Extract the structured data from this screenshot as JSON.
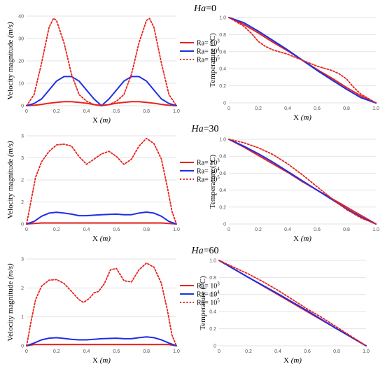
{
  "series_styles": {
    "Ra= 10^3": {
      "color": "#e8231c",
      "dash": "solid"
    },
    "Ra= 10^4": {
      "color": "#1f2ee6",
      "dash": "solid"
    },
    "Ra= 10^5": {
      "color": "#e8231c",
      "dash": "dotted"
    }
  },
  "chart_data": [
    {
      "id": "vel-ha0",
      "type": "line",
      "panel_label": "Ha=0",
      "xlabel": "X (m)",
      "ylabel": "Velocity magnitude (m/s)",
      "xlim": [
        0,
        1
      ],
      "ylim": [
        0,
        40
      ],
      "xticks": [
        "0",
        "0.2",
        "0.4",
        "0.6",
        "0.8",
        "1.0"
      ],
      "yticks": [
        "0",
        "10",
        "20",
        "30",
        "40"
      ],
      "legend": "right",
      "series": [
        {
          "name": "Ra= 10^3",
          "x": [
            0,
            0.05,
            0.1,
            0.15,
            0.2,
            0.25,
            0.3,
            0.35,
            0.4,
            0.45,
            0.5,
            0.55,
            0.6,
            0.65,
            0.7,
            0.75,
            0.8,
            0.85,
            0.9,
            0.95,
            1.0
          ],
          "y": [
            0,
            0.2,
            0.6,
            1.1,
            1.5,
            1.8,
            1.8,
            1.5,
            1.1,
            0.5,
            0,
            0.5,
            1.1,
            1.5,
            1.8,
            1.8,
            1.5,
            1.1,
            0.6,
            0.2,
            0
          ]
        },
        {
          "name": "Ra= 10^4",
          "x": [
            0,
            0.05,
            0.1,
            0.15,
            0.2,
            0.25,
            0.3,
            0.35,
            0.4,
            0.45,
            0.5,
            0.55,
            0.6,
            0.65,
            0.7,
            0.75,
            0.8,
            0.85,
            0.9,
            0.95,
            1.0
          ],
          "y": [
            0,
            1,
            3,
            7,
            11,
            13,
            13,
            11,
            7,
            3,
            0,
            3,
            7,
            11,
            13,
            13,
            11,
            7,
            3,
            1,
            0
          ]
        },
        {
          "name": "Ra= 10^5",
          "x": [
            0,
            0.05,
            0.1,
            0.15,
            0.18,
            0.2,
            0.25,
            0.3,
            0.35,
            0.4,
            0.45,
            0.5,
            0.55,
            0.6,
            0.65,
            0.7,
            0.75,
            0.8,
            0.82,
            0.85,
            0.9,
            0.95,
            1.0
          ],
          "y": [
            0,
            5,
            19,
            35,
            39,
            38,
            28,
            14,
            5,
            2,
            0.5,
            0.2,
            0.5,
            2,
            5,
            14,
            28,
            38,
            39,
            35,
            19,
            5,
            0
          ]
        }
      ]
    },
    {
      "id": "temp-ha0",
      "type": "line",
      "xlabel": "X (m)",
      "ylabel": "Temperature (°C)",
      "xlim": [
        0,
        1
      ],
      "ylim": [
        0,
        1
      ],
      "xticks": [
        "0",
        "0.2",
        "0.4",
        "0.6",
        "0.8",
        "1.0"
      ],
      "yticks": [
        "0",
        "0.2",
        "0.4",
        "0.6",
        "0.8",
        "1.0"
      ],
      "series": [
        {
          "name": "Ra= 10^3",
          "x": [
            0,
            0.1,
            0.2,
            0.3,
            0.4,
            0.5,
            0.6,
            0.7,
            0.8,
            0.9,
            1.0
          ],
          "y": [
            1,
            0.92,
            0.82,
            0.71,
            0.61,
            0.5,
            0.39,
            0.29,
            0.18,
            0.08,
            0
          ]
        },
        {
          "name": "Ra= 10^4",
          "x": [
            0,
            0.1,
            0.2,
            0.3,
            0.4,
            0.5,
            0.6,
            0.7,
            0.8,
            0.9,
            1.0
          ],
          "y": [
            1,
            0.94,
            0.84,
            0.73,
            0.62,
            0.5,
            0.38,
            0.27,
            0.16,
            0.06,
            0
          ]
        },
        {
          "name": "Ra= 10^5",
          "x": [
            0,
            0.1,
            0.15,
            0.2,
            0.25,
            0.3,
            0.4,
            0.5,
            0.6,
            0.7,
            0.75,
            0.8,
            0.85,
            0.9,
            1.0
          ],
          "y": [
            1,
            0.9,
            0.82,
            0.72,
            0.66,
            0.62,
            0.57,
            0.5,
            0.43,
            0.38,
            0.34,
            0.28,
            0.18,
            0.1,
            0
          ]
        }
      ]
    },
    {
      "id": "vel-ha30",
      "type": "line",
      "panel_label": "Ha=30",
      "xlabel": "X (m)",
      "ylabel": "Velocity magnitude (m/s)",
      "xlim": [
        0,
        1
      ],
      "ylim": [
        0,
        3.4
      ],
      "xticks": [
        "0",
        "0.2",
        "0.4",
        "0.6",
        "0.8",
        "1.0"
      ],
      "yticks": [
        "0",
        "2",
        "2",
        "3",
        "3"
      ],
      "legend": "right",
      "series": [
        {
          "name": "Ra= 10^3",
          "x": [
            0,
            0.05,
            0.1,
            0.5,
            0.9,
            0.95,
            1.0
          ],
          "y": [
            0,
            0.02,
            0.04,
            0.04,
            0.04,
            0.02,
            0
          ]
        },
        {
          "name": "Ra= 10^4",
          "x": [
            0,
            0.05,
            0.1,
            0.15,
            0.2,
            0.25,
            0.3,
            0.35,
            0.4,
            0.45,
            0.5,
            0.55,
            0.6,
            0.65,
            0.7,
            0.75,
            0.8,
            0.85,
            0.9,
            0.95,
            1.0
          ],
          "y": [
            0,
            0.1,
            0.3,
            0.42,
            0.45,
            0.42,
            0.38,
            0.32,
            0.32,
            0.34,
            0.36,
            0.37,
            0.38,
            0.36,
            0.36,
            0.42,
            0.46,
            0.42,
            0.3,
            0.1,
            0
          ]
        },
        {
          "name": "Ra= 10^5",
          "x": [
            0,
            0.03,
            0.06,
            0.1,
            0.15,
            0.2,
            0.25,
            0.3,
            0.35,
            0.4,
            0.45,
            0.5,
            0.55,
            0.6,
            0.65,
            0.7,
            0.75,
            0.8,
            0.85,
            0.9,
            0.94,
            0.97,
            1.0
          ],
          "y": [
            0,
            0.9,
            1.8,
            2.4,
            2.8,
            3.05,
            3.08,
            3.0,
            2.6,
            2.3,
            2.5,
            2.7,
            2.8,
            2.6,
            2.3,
            2.5,
            3.0,
            3.3,
            3.1,
            2.5,
            1.4,
            0.5,
            0
          ]
        }
      ]
    },
    {
      "id": "temp-ha30",
      "type": "line",
      "xlabel": "X (m)",
      "ylabel": "Temperature (°C)",
      "xlim": [
        0,
        1
      ],
      "ylim": [
        0,
        1
      ],
      "xticks": [
        "0",
        "0.2",
        "0.4",
        "0.6",
        "0.8",
        "1.0"
      ],
      "yticks": [
        "0",
        "0.2",
        "0.4",
        "0.6",
        "0.8",
        "1.0"
      ],
      "series": [
        {
          "name": "Ra= 10^3",
          "x": [
            0,
            0.1,
            0.2,
            0.3,
            0.4,
            0.5,
            0.6,
            0.7,
            0.8,
            0.9,
            1.0
          ],
          "y": [
            1,
            0.91,
            0.81,
            0.71,
            0.61,
            0.5,
            0.4,
            0.3,
            0.2,
            0.1,
            0
          ]
        },
        {
          "name": "Ra= 10^4",
          "x": [
            0,
            0.1,
            0.2,
            0.3,
            0.4,
            0.5,
            0.6,
            0.7,
            0.8,
            0.9,
            1.0
          ],
          "y": [
            1,
            0.92,
            0.83,
            0.73,
            0.62,
            0.51,
            0.4,
            0.29,
            0.18,
            0.08,
            0
          ]
        },
        {
          "name": "Ra= 10^5",
          "x": [
            0,
            0.1,
            0.2,
            0.3,
            0.4,
            0.5,
            0.6,
            0.7,
            0.8,
            0.9,
            1.0
          ],
          "y": [
            1,
            0.96,
            0.9,
            0.82,
            0.71,
            0.58,
            0.44,
            0.3,
            0.17,
            0.07,
            0
          ]
        }
      ]
    },
    {
      "id": "vel-ha60",
      "type": "line",
      "panel_label": "Ha=60",
      "xlabel": "X (m)",
      "ylabel": "Velocity magnitude (m/s)",
      "xlim": [
        0,
        1
      ],
      "ylim": [
        0,
        3.2
      ],
      "xticks": [
        "0",
        "0.2",
        "0.4",
        "0.6",
        "0.8",
        "1.0"
      ],
      "yticks": [
        "0",
        "1",
        "2",
        "3"
      ],
      "legend": "right",
      "series": [
        {
          "name": "Ra= 10^3",
          "x": [
            0,
            0.05,
            0.5,
            0.95,
            1.0
          ],
          "y": [
            0,
            0.05,
            0.05,
            0.05,
            0
          ]
        },
        {
          "name": "Ra= 10^4",
          "x": [
            0,
            0.05,
            0.1,
            0.15,
            0.2,
            0.25,
            0.3,
            0.35,
            0.4,
            0.45,
            0.5,
            0.55,
            0.6,
            0.65,
            0.7,
            0.75,
            0.8,
            0.85,
            0.9,
            0.95,
            1.0
          ],
          "y": [
            0,
            0.1,
            0.22,
            0.28,
            0.3,
            0.27,
            0.24,
            0.22,
            0.22,
            0.24,
            0.26,
            0.27,
            0.28,
            0.26,
            0.26,
            0.3,
            0.33,
            0.3,
            0.22,
            0.1,
            0
          ]
        },
        {
          "name": "Ra= 10^5",
          "x": [
            0,
            0.03,
            0.06,
            0.1,
            0.15,
            0.2,
            0.25,
            0.3,
            0.35,
            0.38,
            0.42,
            0.45,
            0.48,
            0.52,
            0.56,
            0.6,
            0.65,
            0.7,
            0.75,
            0.8,
            0.85,
            0.9,
            0.94,
            0.97,
            1.0
          ],
          "y": [
            0,
            0.9,
            1.7,
            2.2,
            2.42,
            2.44,
            2.3,
            2.0,
            1.7,
            1.6,
            1.75,
            1.95,
            2.0,
            2.3,
            2.8,
            2.85,
            2.4,
            2.35,
            2.8,
            3.05,
            2.9,
            2.3,
            1.3,
            0.4,
            0
          ]
        }
      ]
    },
    {
      "id": "temp-ha60",
      "type": "line",
      "xlabel": "X (m)",
      "ylabel": "Temperature (°C)",
      "xlim": [
        0,
        1
      ],
      "ylim": [
        0,
        1
      ],
      "xticks": [
        "0",
        "0.2",
        "0.4",
        "0.6",
        "0.8",
        "1.0"
      ],
      "yticks": [
        "0",
        "0.2",
        "0.4",
        "0.6",
        "0.8",
        "1.0"
      ],
      "series": [
        {
          "name": "Ra= 10^3",
          "x": [
            0,
            0.2,
            0.4,
            0.6,
            0.8,
            1.0
          ],
          "y": [
            1,
            0.8,
            0.6,
            0.4,
            0.2,
            0
          ]
        },
        {
          "name": "Ra= 10^4",
          "x": [
            0,
            0.2,
            0.4,
            0.6,
            0.8,
            1.0
          ],
          "y": [
            1,
            0.8,
            0.61,
            0.41,
            0.2,
            0
          ]
        },
        {
          "name": "Ra= 10^5",
          "x": [
            0,
            0.1,
            0.2,
            0.3,
            0.4,
            0.5,
            0.6,
            0.7,
            0.8,
            0.9,
            1.0
          ],
          "y": [
            1,
            0.92,
            0.84,
            0.75,
            0.65,
            0.54,
            0.43,
            0.33,
            0.22,
            0.11,
            0
          ]
        }
      ]
    }
  ]
}
